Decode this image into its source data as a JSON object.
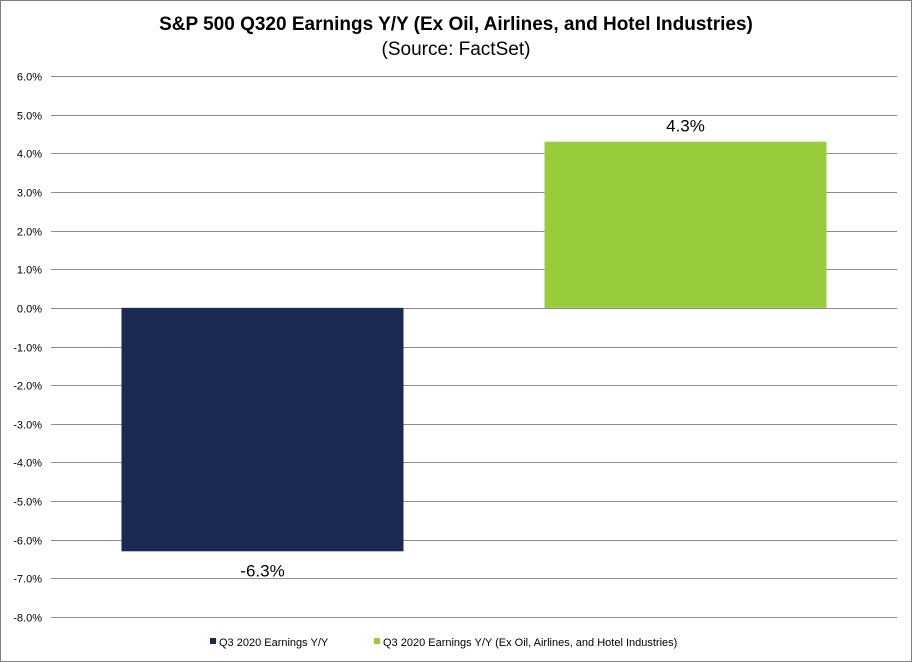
{
  "chart_data": {
    "type": "bar",
    "title": "S&P 500 Q320 Earnings Y/Y (Ex Oil, Airlines,  and Hotel Industries)",
    "subtitle": "(Source: FactSet)",
    "ylim": [
      -8.0,
      6.0
    ],
    "yticks": [
      6.0,
      5.0,
      4.0,
      3.0,
      2.0,
      1.0,
      0.0,
      -1.0,
      -2.0,
      -3.0,
      -4.0,
      -5.0,
      -6.0,
      -7.0,
      -8.0
    ],
    "ytick_labels": [
      "6.0%",
      "5.0%",
      "4.0%",
      "3.0%",
      "2.0%",
      "1.0%",
      "0.0%",
      "-1.0%",
      "-2.0%",
      "-3.0%",
      "-4.0%",
      "-5.0%",
      "-6.0%",
      "-7.0%",
      "-8.0%"
    ],
    "grid": true,
    "legend_position": "bottom",
    "series": [
      {
        "name": "Q3 2020 Earnings Y/Y",
        "value": -6.3,
        "label": "-6.3%",
        "color": "#1b2a52"
      },
      {
        "name": "Q3 2020 Earnings Y/Y  (Ex Oil, Airlines, and Hotel Industries)",
        "value": 4.3,
        "label": "4.3%",
        "color": "#99cc3c"
      }
    ]
  }
}
